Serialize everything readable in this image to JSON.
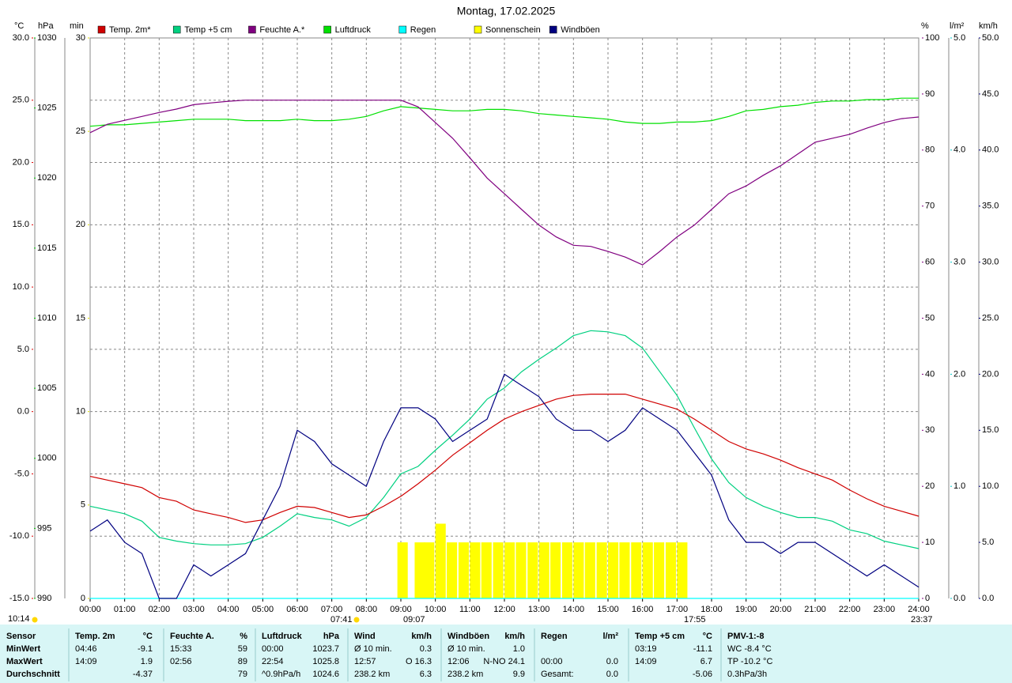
{
  "chart_data": {
    "type": "line",
    "title": "Montag, 17.02.2025",
    "x": [
      0,
      0.5,
      1,
      1.5,
      2,
      2.5,
      3,
      3.5,
      4,
      4.5,
      5,
      5.5,
      6,
      6.5,
      7,
      7.5,
      8,
      8.5,
      9,
      9.5,
      10,
      10.5,
      11,
      11.5,
      12,
      12.5,
      13,
      13.5,
      14,
      14.5,
      15,
      15.5,
      16,
      16.5,
      17,
      17.5,
      18,
      18.5,
      19,
      19.5,
      20,
      20.5,
      21,
      21.5,
      22,
      22.5,
      23,
      23.5,
      24
    ],
    "xlim": [
      0,
      24
    ],
    "xticks": [
      {
        "value": 0,
        "label": "00:00"
      },
      {
        "value": 1,
        "label": "01:00"
      },
      {
        "value": 2,
        "label": "02:00"
      },
      {
        "value": 3,
        "label": "03:00"
      },
      {
        "value": 4,
        "label": "04:00"
      },
      {
        "value": 5,
        "label": "05:00"
      },
      {
        "value": 6,
        "label": "06:00"
      },
      {
        "value": 7,
        "label": "07:00"
      },
      {
        "value": 8,
        "label": "08:00"
      },
      {
        "value": 9,
        "label": "09:00"
      },
      {
        "value": 10,
        "label": "10:00"
      },
      {
        "value": 11,
        "label": "11:00"
      },
      {
        "value": 12,
        "label": "12:00"
      },
      {
        "value": 13,
        "label": "13:00"
      },
      {
        "value": 14,
        "label": "14:00"
      },
      {
        "value": 15,
        "label": "15:00"
      },
      {
        "value": 16,
        "label": "16:00"
      },
      {
        "value": 17,
        "label": "17:00"
      },
      {
        "value": 18,
        "label": "18:00"
      },
      {
        "value": 19,
        "label": "19:00"
      },
      {
        "value": 20,
        "label": "20:00"
      },
      {
        "value": 21,
        "label": "21:00"
      },
      {
        "value": 22,
        "label": "22:00"
      },
      {
        "value": 23,
        "label": "23:00"
      },
      {
        "value": 24,
        "label": "24:00"
      }
    ],
    "grid": true,
    "axes": [
      {
        "id": "temp",
        "unit": "°C",
        "color": "#e00000",
        "lim": [
          -15,
          30
        ],
        "ticks": [
          {
            "value": -15,
            "label": "-15.0"
          },
          {
            "value": -10,
            "label": "-10.0"
          },
          {
            "value": -5,
            "label": "-5.0"
          },
          {
            "value": 0,
            "label": "0.0"
          },
          {
            "value": 5,
            "label": "5.0"
          },
          {
            "value": 10,
            "label": "10.0"
          },
          {
            "value": 15,
            "label": "15.0"
          },
          {
            "value": 20,
            "label": "20.0"
          },
          {
            "value": 25,
            "label": "25.0"
          },
          {
            "value": 30,
            "label": "30.0"
          }
        ]
      },
      {
        "id": "hpa",
        "unit": "hPa",
        "color": "#00c000",
        "lim": [
          990,
          1030
        ],
        "ticks": [
          990,
          995,
          1000,
          1005,
          1010,
          1015,
          1020,
          1025,
          1030
        ]
      },
      {
        "id": "min",
        "unit": "min",
        "color": "#e0e000",
        "lim": [
          0,
          30
        ],
        "ticks": [
          0,
          5,
          10,
          15,
          20,
          25,
          30
        ]
      },
      {
        "id": "pct",
        "unit": "%",
        "color": "#800080",
        "lim": [
          0,
          100
        ],
        "ticks": [
          0,
          10,
          20,
          30,
          40,
          50,
          60,
          70,
          80,
          90,
          100
        ]
      },
      {
        "id": "rain",
        "unit": "l/m²",
        "color": "#00c8c8",
        "lim": [
          0,
          5
        ],
        "ticks": [
          {
            "value": 0,
            "label": "0.0"
          },
          {
            "value": 1,
            "label": "1.0"
          },
          {
            "value": 2,
            "label": "2.0"
          },
          {
            "value": 3,
            "label": "3.0"
          },
          {
            "value": 4,
            "label": "4.0"
          },
          {
            "value": 5,
            "label": "5.0"
          }
        ]
      },
      {
        "id": "wind",
        "unit": "km/h",
        "color": "#000080",
        "lim": [
          0,
          50
        ],
        "ticks": [
          {
            "value": 0,
            "label": "0.0"
          },
          {
            "value": 5,
            "label": "5.0"
          },
          {
            "value": 10,
            "label": "10.0"
          },
          {
            "value": 15,
            "label": "15.0"
          },
          {
            "value": 20,
            "label": "20.0"
          },
          {
            "value": 25,
            "label": "25.0"
          },
          {
            "value": 30,
            "label": "30.0"
          },
          {
            "value": 35,
            "label": "35.0"
          },
          {
            "value": 40,
            "label": "40.0"
          },
          {
            "value": 45,
            "label": "45.0"
          },
          {
            "value": 50,
            "label": "50.0"
          }
        ]
      }
    ],
    "series": [
      {
        "name": "Temp. 2m*",
        "color": "#d00000",
        "axis": "temp",
        "values": [
          -5.2,
          -5.5,
          -5.8,
          -6.1,
          -6.9,
          -7.2,
          -7.9,
          -8.2,
          -8.5,
          -8.9,
          -8.7,
          -8.1,
          -7.6,
          -7.7,
          -8.1,
          -8.5,
          -8.3,
          -7.6,
          -6.8,
          -5.8,
          -4.7,
          -3.5,
          -2.5,
          -1.5,
          -0.6,
          0,
          0.5,
          1.0,
          1.3,
          1.4,
          1.4,
          1.4,
          1.0,
          0.6,
          0.2,
          -0.6,
          -1.5,
          -2.4,
          -3.0,
          -3.4,
          -3.9,
          -4.5,
          -5.0,
          -5.5,
          -6.3,
          -7.0,
          -7.6,
          -8.0,
          -8.4
        ]
      },
      {
        "name": "Temp +5 cm",
        "color": "#00d080",
        "axis": "temp",
        "values": [
          -7.6,
          -7.9,
          -8.2,
          -8.8,
          -10.1,
          -10.4,
          -10.6,
          -10.7,
          -10.7,
          -10.6,
          -10.1,
          -9.2,
          -8.2,
          -8.5,
          -8.7,
          -9.2,
          -8.5,
          -6.9,
          -5.0,
          -4.4,
          -3.1,
          -1.9,
          -0.6,
          1.0,
          1.9,
          3.2,
          4.2,
          5.1,
          6.1,
          6.5,
          6.4,
          6.1,
          5.1,
          3.2,
          1.3,
          -1.3,
          -3.8,
          -5.7,
          -6.9,
          -7.6,
          -8.1,
          -8.5,
          -8.5,
          -8.8,
          -9.5,
          -9.8,
          -10.4,
          -10.7,
          -11.0
        ]
      },
      {
        "name": "Feuchte A.*",
        "color": "#800080",
        "axis": "pct",
        "values": [
          83.1,
          84.6,
          85.3,
          86.0,
          86.7,
          87.3,
          88.1,
          88.4,
          88.7,
          88.9,
          88.9,
          88.9,
          88.9,
          88.9,
          88.9,
          88.9,
          88.9,
          88.9,
          88.9,
          87.7,
          84.9,
          82.1,
          78.6,
          75.0,
          72.2,
          69.4,
          66.6,
          64.5,
          63.0,
          62.8,
          61.9,
          60.9,
          59.5,
          61.9,
          64.5,
          66.6,
          69.4,
          72.2,
          73.6,
          75.5,
          77.2,
          79.3,
          81.4,
          82.1,
          82.8,
          83.9,
          84.9,
          85.6,
          85.9
        ]
      },
      {
        "name": "Luftdruck",
        "color": "#00e000",
        "axis": "hpa",
        "values": [
          1023.7,
          1023.8,
          1023.8,
          1023.9,
          1024.0,
          1024.1,
          1024.2,
          1024.2,
          1024.2,
          1024.1,
          1024.1,
          1024.1,
          1024.2,
          1024.1,
          1024.1,
          1024.2,
          1024.4,
          1024.8,
          1025.1,
          1025.0,
          1024.9,
          1024.8,
          1024.8,
          1024.9,
          1024.9,
          1024.8,
          1024.6,
          1024.5,
          1024.4,
          1024.3,
          1024.2,
          1024.0,
          1023.9,
          1023.9,
          1024.0,
          1024.0,
          1024.1,
          1024.4,
          1024.8,
          1024.9,
          1025.1,
          1025.2,
          1025.4,
          1025.5,
          1025.5,
          1025.6,
          1025.6,
          1025.7,
          1025.7
        ]
      },
      {
        "name": "Regen",
        "color": "#00ffff",
        "axis": "rain",
        "values": [
          0,
          0,
          0,
          0,
          0,
          0,
          0,
          0,
          0,
          0,
          0,
          0,
          0,
          0,
          0,
          0,
          0,
          0,
          0,
          0,
          0,
          0,
          0,
          0,
          0,
          0,
          0,
          0,
          0,
          0,
          0,
          0,
          0,
          0,
          0,
          0,
          0,
          0,
          0,
          0,
          0,
          0,
          0,
          0,
          0,
          0,
          0,
          0,
          0
        ]
      },
      {
        "name": "Sonnenschein",
        "color": "#ffff00",
        "axis": "min",
        "type": "bar",
        "x": [
          8.9,
          9.4,
          9.67,
          10.0,
          10.33,
          10.67,
          11.0,
          11.33,
          11.67,
          12.0,
          12.33,
          12.67,
          13.0,
          13.33,
          13.67,
          14.0,
          14.33,
          14.67,
          15.0,
          15.33,
          15.67,
          16.0,
          16.33,
          16.67,
          17.0
        ],
        "values": [
          3,
          3,
          3,
          4,
          3,
          3,
          3,
          3,
          3,
          3,
          3,
          3,
          3,
          3,
          3,
          3,
          3,
          3,
          3,
          3,
          3,
          3,
          3,
          3,
          3
        ]
      },
      {
        "name": "Windböen",
        "color": "#000080",
        "axis": "wind",
        "values": [
          6,
          7,
          5,
          4,
          0,
          0,
          3,
          2,
          3,
          4,
          7,
          10,
          15,
          14,
          12,
          11,
          10,
          14,
          17,
          17,
          16,
          14,
          15,
          16,
          20,
          19,
          18,
          16,
          15,
          15,
          14,
          15,
          17,
          16,
          15,
          13,
          11,
          7,
          5,
          5,
          4,
          5,
          5,
          4,
          3,
          2,
          3,
          2,
          1
        ]
      }
    ],
    "annotations": [
      "10:14",
      "07:41",
      "09:07",
      "17:55",
      "23:37"
    ]
  },
  "stats": {
    "header": "Sensor",
    "row_labels": [
      "MinWert",
      "MaxWert",
      "Durchschnitt"
    ],
    "columns": [
      {
        "title": "Temp. 2m",
        "unit": "°C",
        "rows": [
          [
            "04:46",
            "-9.1"
          ],
          [
            "14:09",
            "1.9"
          ],
          [
            "-4.37"
          ]
        ]
      },
      {
        "title": "Feuchte A.",
        "unit": "%",
        "rows": [
          [
            "15:33",
            "59"
          ],
          [
            "02:56",
            "89"
          ],
          [
            "79"
          ]
        ]
      },
      {
        "title": "Luftdruck",
        "unit": "hPa",
        "rows": [
          [
            "00:00",
            "1023.7"
          ],
          [
            "22:54",
            "1025.8"
          ],
          [
            "^0.9hPa/h",
            "1024.6"
          ]
        ]
      },
      {
        "title": "Wind",
        "unit": "km/h",
        "rows": [
          [
            "Ø 10 min.",
            "0.3"
          ],
          [
            "12:57",
            "O 16.3"
          ],
          [
            "238.2 km",
            "6.3"
          ]
        ]
      },
      {
        "title": "Windböen",
        "unit": "km/h",
        "rows": [
          [
            "Ø 10 min.",
            "1.0"
          ],
          [
            "12:06",
            "N-NO 24.1"
          ],
          [
            "238.2 km",
            "9.9"
          ]
        ]
      },
      {
        "title": "Regen",
        "unit": "l/m²",
        "rows": [
          [],
          [
            "00:00",
            "0.0"
          ],
          [
            "Gesamt:",
            "0.0"
          ]
        ]
      },
      {
        "title": "Temp +5 cm",
        "unit": "°C",
        "rows": [
          [
            "03:19",
            "-11.1"
          ],
          [
            "14:09",
            "6.7"
          ],
          [
            "-5.06"
          ]
        ]
      },
      {
        "title": "PMV-1:-8",
        "rows": [
          [
            "WC -8.4 °C"
          ],
          [
            "TP -10.2 °C"
          ],
          [
            "0.3hPa/3h"
          ]
        ]
      }
    ]
  }
}
